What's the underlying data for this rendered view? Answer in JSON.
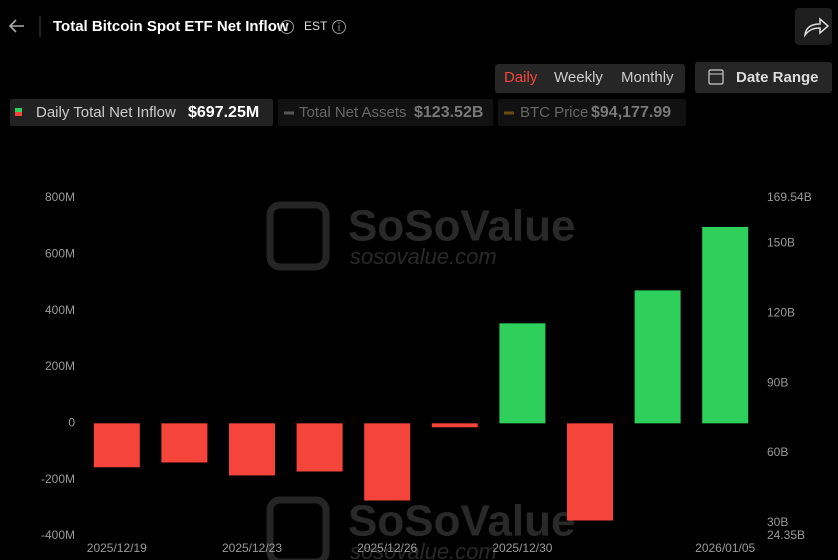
{
  "header": {
    "title": "Total Bitcoin Spot ETF Net Inflow",
    "timezone": "EST"
  },
  "controls": {
    "tabs": [
      "Daily",
      "Weekly",
      "Monthly"
    ],
    "date_range": "Date Range"
  },
  "watermark": {
    "brand": "SoSoValue",
    "site": "sosovalue.com"
  },
  "chart_data": {
    "type": "bar",
    "legend": [
      {
        "name": "Daily Total Net Inflow",
        "value": "$697.25M"
      },
      {
        "name": "Total Net Assets",
        "value": "$123.52B"
      },
      {
        "name": "BTC Price",
        "value": "$94,177.99"
      }
    ],
    "categories": [
      "2025/12/19",
      null,
      "2025/12/23",
      null,
      "2025/12/26",
      null,
      "2025/12/30",
      null,
      null,
      "2026/01/05"
    ],
    "values": [
      -156,
      -139,
      -185,
      -171,
      -274,
      -14,
      355,
      -345,
      472,
      697.25
    ],
    "positive_color": "#2ecf5b",
    "negative_color": "#f5453b",
    "ylim": [
      -400,
      800
    ],
    "yticks": [
      {
        "value": -400,
        "label": "-400M"
      },
      {
        "value": -200,
        "label": "-200M"
      },
      0,
      {
        "value": 200,
        "label": "200M"
      },
      {
        "value": 400,
        "label": "400M"
      },
      {
        "value": 600,
        "label": "600M"
      },
      {
        "value": 800,
        "label": "800M"
      }
    ],
    "y2lim": [
      24.35,
      169.54
    ],
    "y2ticks": [
      {
        "value": 24.35,
        "label": "24.35B"
      },
      {
        "value": 30,
        "label": "30B"
      },
      {
        "value": 60,
        "label": "60B"
      },
      {
        "value": 90,
        "label": "90B"
      },
      {
        "value": 120,
        "label": "120B"
      },
      {
        "value": 150,
        "label": "150B"
      },
      {
        "value": 169.54,
        "label": "169.54B"
      }
    ],
    "grid": false
  }
}
